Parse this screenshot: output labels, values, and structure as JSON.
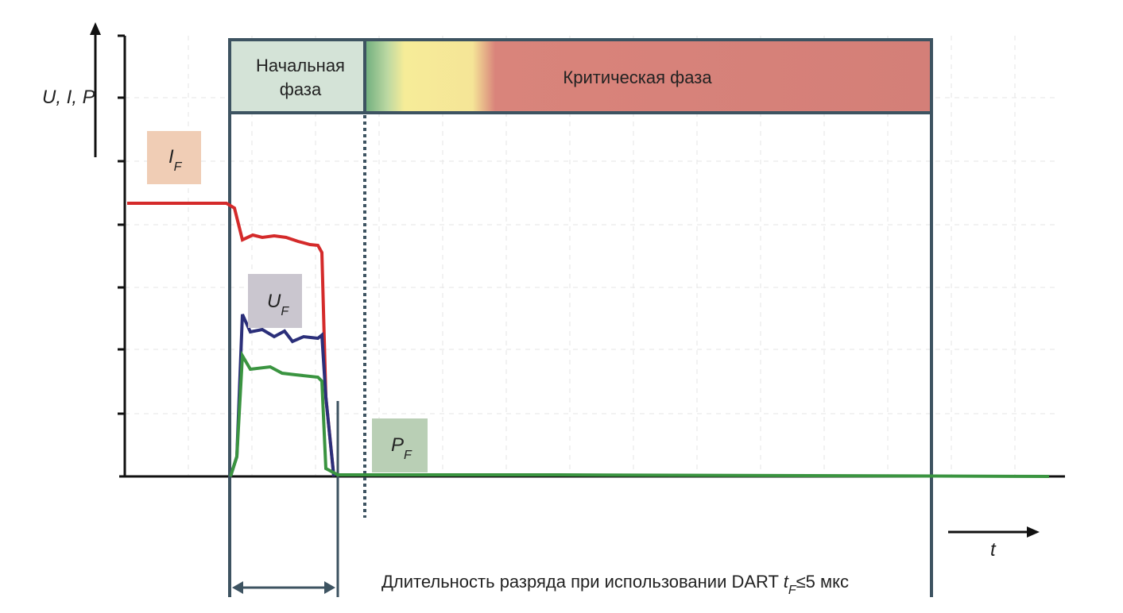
{
  "axis": {
    "y": "U, I, P",
    "x": "t"
  },
  "phases": {
    "initial": [
      "Начальная",
      "фаза"
    ],
    "critical": "Критическая фаза"
  },
  "labels": {
    "current": {
      "main": "I",
      "sub": "F"
    },
    "voltage": {
      "main": "U",
      "sub": "F"
    },
    "power": {
      "main": "P",
      "sub": "F"
    }
  },
  "caption": {
    "before": "Длительность разряда при использовании DART ",
    "var": "t",
    "sub": "F",
    "after": "≤5 мкс"
  }
}
